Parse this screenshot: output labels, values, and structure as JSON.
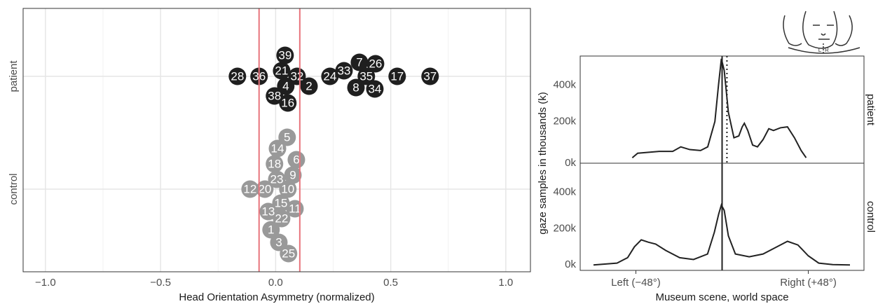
{
  "chart_data": [
    {
      "type": "swarm",
      "xlabel": "Head Orientation Asymmetry (normalized)",
      "xlim": [
        -1.097,
        1.107
      ],
      "xticks": [
        {
          "value": -1.0,
          "label": "−1.0"
        },
        {
          "value": -0.5,
          "label": "−0.5"
        },
        {
          "value": 0,
          "label": "0.0"
        },
        {
          "value": 0.5,
          "label": "0.5"
        },
        {
          "value": 1.0,
          "label": "1.0"
        }
      ],
      "minor_xticks": [
        -0.75,
        -0.25,
        0.25,
        0.75
      ],
      "grid": true,
      "vlines": [
        -0.072,
        0.105
      ],
      "vline_color": "#e8747c",
      "series": [
        {
          "name": "patient",
          "color": "#1f1f1f",
          "labels": [
            "32",
            "4",
            "35",
            "21",
            "24",
            "8",
            "28",
            "36",
            "2",
            "17",
            "37",
            "38",
            "33",
            "34",
            "7",
            "39",
            "26",
            "16"
          ],
          "values": [
            0.093,
            0.044,
            0.394,
            0.026,
            0.236,
            0.349,
            -0.166,
            -0.072,
            0.145,
            0.528,
            0.671,
            -0.005,
            0.297,
            0.431,
            0.364,
            0.041,
            0.434,
            0.053
          ]
        },
        {
          "name": "control",
          "color": "#999999",
          "labels": [
            "10",
            "15",
            "23",
            "18",
            "9",
            "20",
            "12",
            "22",
            "13",
            "11",
            "1",
            "6",
            "14",
            "3",
            "5",
            "25"
          ],
          "values": [
            0.053,
            0.023,
            0.005,
            -0.005,
            0.075,
            -0.047,
            -0.111,
            0.026,
            -0.032,
            0.084,
            -0.02,
            0.09,
            0.008,
            0.014,
            0.05,
            0.056
          ]
        }
      ]
    },
    {
      "type": "density",
      "xlabel": "Museum scene, world space",
      "ylabel": "gaze samples in thousands (k)",
      "xlim": [
        -79,
        79
      ],
      "ylim": [
        -30,
        560
      ],
      "xticks": [
        {
          "value": -48,
          "label": "Left (−48°)"
        },
        {
          "value": 48,
          "label": "Right (+48°)"
        }
      ],
      "yticks": [
        {
          "value": 0,
          "label": "0k"
        },
        {
          "value": 200,
          "label": "200k"
        },
        {
          "value": 400,
          "label": "400k"
        }
      ],
      "vline": 0,
      "color": "#222222",
      "icon": {
        "left": "L",
        "right": "R"
      },
      "series": [
        {
          "name": "patient",
          "dotted_line": 2.7,
          "x": [
            -50,
            -47,
            -35,
            -27.5,
            -23,
            -18,
            -12,
            -8,
            -4,
            -2,
            -0.4,
            1.2,
            3.5,
            6.6,
            9.3,
            11.2,
            12.4,
            14.3,
            17,
            19.7,
            22.8,
            26,
            28.6,
            32.5,
            36.4,
            40.3,
            44,
            46.8
          ],
          "values": [
            0,
            25,
            35,
            35,
            60,
            45,
            40,
            60,
            200,
            400,
            545,
            480,
            250,
            110,
            120,
            170,
            190,
            150,
            70,
            60,
            100,
            160,
            150,
            165,
            170,
            110,
            40,
            0
          ]
        },
        {
          "name": "control",
          "x": [
            -71.6,
            -58.5,
            -52.6,
            -48.8,
            -45,
            -41,
            -37,
            -31.4,
            -23.6,
            -15.9,
            -8.1,
            -4.3,
            -1.9,
            -0.4,
            1.2,
            3.5,
            7.4,
            15.1,
            22.8,
            30.6,
            36.4,
            42.2,
            48,
            53.8,
            61.6,
            71.2
          ],
          "values": [
            0,
            10,
            40,
            100,
            138,
            125,
            115,
            80,
            40,
            30,
            60,
            180,
            280,
            330,
            300,
            160,
            60,
            45,
            60,
            100,
            130,
            110,
            50,
            10,
            2,
            0
          ]
        }
      ]
    }
  ]
}
